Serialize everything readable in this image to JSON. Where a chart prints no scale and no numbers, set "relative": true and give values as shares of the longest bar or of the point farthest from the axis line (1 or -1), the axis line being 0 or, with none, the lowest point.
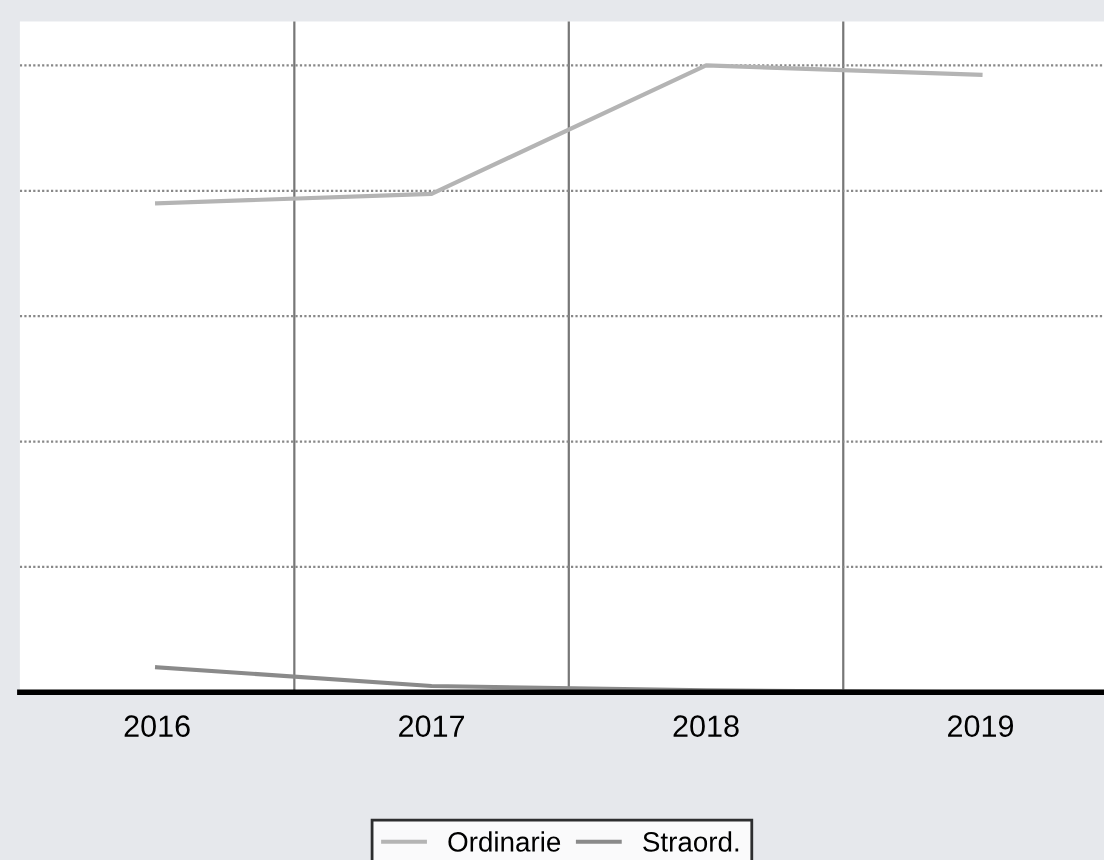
{
  "chart_data": {
    "type": "line",
    "relative": true,
    "categories": [
      "2016",
      "2017",
      "2018",
      "2019"
    ],
    "series": [
      {
        "name": "Ordinarie",
        "color": "#b4b4b4",
        "values": [
          0.78,
          0.795,
          1,
          0.985
        ]
      },
      {
        "name": "Straord.",
        "color": "#8a8a8a",
        "values": [
          0.04,
          0.01,
          0.003,
          0
        ]
      }
    ],
    "grid": true,
    "legend": "bottom"
  }
}
